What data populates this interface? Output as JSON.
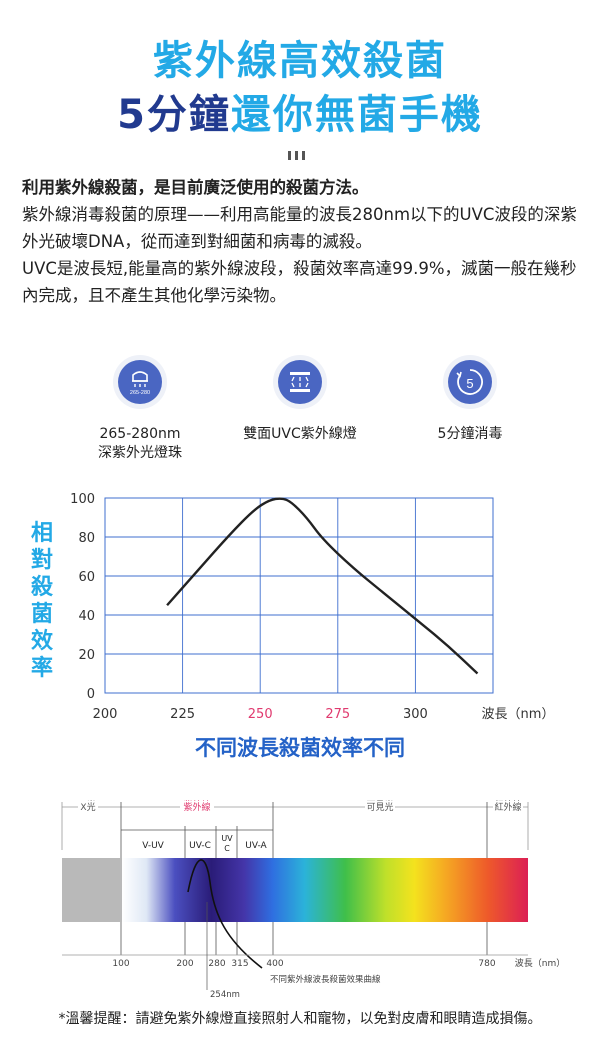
{
  "hero": {
    "line1": "紫外線高效殺菌",
    "line2a": "5分鐘",
    "line2b": "還你無菌手機"
  },
  "intro": {
    "lead": "利用紫外線殺菌，是目前廣泛使用的殺菌方法。",
    "p1": "紫外線消毒殺菌的原理——利用高能量的波長280nm以下的UVC波段的深紫外光破壞DNA，從而達到對細菌和病毒的滅殺。",
    "p2": "UVC是波長短,能量高的紫外線波段，殺菌效率高達99.9%，滅菌一般在幾秒內完成，且不產生其他化學污染物。"
  },
  "features": [
    {
      "icon": "led-bead-icon",
      "icon_text": "265-280",
      "label": "265-280nm\n深紫外光燈珠"
    },
    {
      "icon": "dual-lamp-icon",
      "label": "雙面UVC紫外線燈"
    },
    {
      "icon": "timer-5-icon",
      "icon_text": "5",
      "label": "5分鐘消毒"
    }
  ],
  "chart_data": {
    "type": "line",
    "title": "不同波長殺菌效率不同",
    "ylabel": "相對殺菌效率",
    "xlabel": "波長（nm）",
    "xlim": [
      200,
      325
    ],
    "ylim": [
      0,
      100
    ],
    "xticks": [
      200,
      225,
      250,
      275,
      300
    ],
    "yticks": [
      0,
      20,
      40,
      60,
      80,
      100
    ],
    "highlight_ticks": [
      250,
      275
    ],
    "highlight_color": "#e03a6f",
    "line_color": "#222222",
    "grid_color": "#3f6fcf",
    "series": [
      {
        "x": [
          220,
          230,
          240,
          248,
          253,
          257,
          260,
          265,
          270,
          280,
          290,
          300,
          310,
          320
        ],
        "y": [
          45,
          63,
          81,
          94,
          99,
          100,
          98,
          90,
          79,
          64,
          51,
          38,
          25,
          10
        ]
      }
    ]
  },
  "spectrum": {
    "regions": {
      "x_ray": "X光",
      "uv": "紫外線",
      "visible": "可見光",
      "ir": "紅外線"
    },
    "bands": {
      "v_uv": "V-UV",
      "uv_c": "UV-C",
      "uv_c_stack": [
        "UV",
        "C"
      ],
      "uv_a": "UV-A"
    },
    "ticks": [
      "100",
      "200",
      "280",
      "315",
      "400",
      "780"
    ],
    "axis_label": "波長（nm）",
    "curve_label": "不同紫外線波長殺菌效果曲線",
    "peak_label": "254nm",
    "uv_color": "#e03a6f"
  },
  "footnote": "*溫馨提醒：請避免紫外線燈直接照射人和寵物，以免對皮膚和眼睛造成損傷。"
}
